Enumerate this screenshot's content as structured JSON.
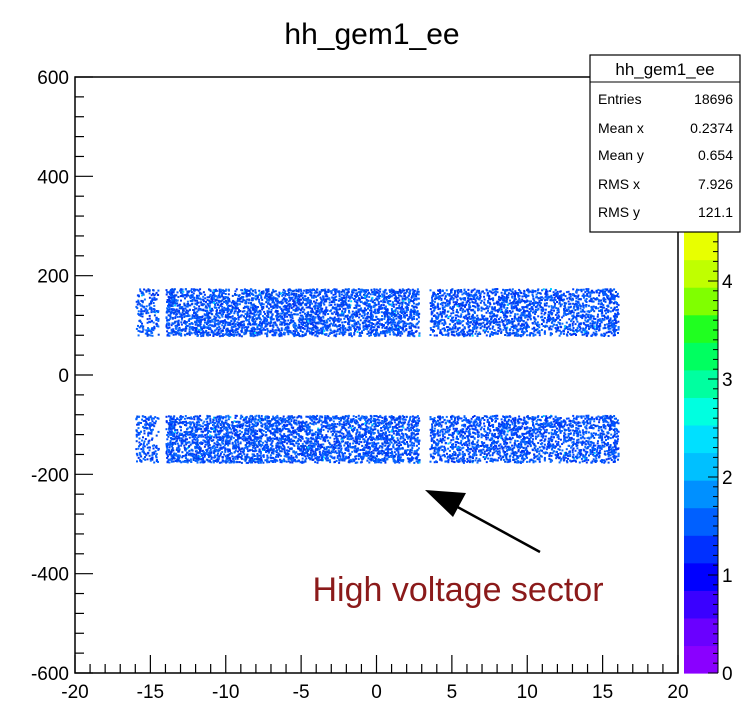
{
  "chart_data": {
    "type": "heatmap",
    "title": "hh_gem1_ee",
    "xlabel": "",
    "ylabel": "",
    "xlim": [
      -20,
      20
    ],
    "ylim": [
      -600,
      600
    ],
    "x_ticks": [
      -20,
      -15,
      -10,
      -5,
      0,
      5,
      10,
      15,
      20
    ],
    "y_ticks": [
      -600,
      -400,
      -200,
      0,
      200,
      400,
      600
    ],
    "z_ticks": [
      0,
      1,
      2,
      3,
      4
    ],
    "z_range": [
      0,
      4.5
    ],
    "palette": [
      "#8a00ff",
      "#6a00ff",
      "#3a00ff",
      "#0000ff",
      "#0030ff",
      "#0060ff",
      "#0090ff",
      "#00c0ff",
      "#00e0ff",
      "#00ffe0",
      "#00ffa0",
      "#00ff60",
      "#20ff20",
      "#80ff00",
      "#c0ff00",
      "#e8ff00"
    ],
    "regions": [
      {
        "x": [
          -16,
          -14.5
        ],
        "y": [
          80,
          175
        ],
        "density": 0.35
      },
      {
        "x": [
          -14,
          2.8
        ],
        "y": [
          80,
          175
        ],
        "density": 0.6
      },
      {
        "x": [
          3.5,
          16
        ],
        "y": [
          80,
          175
        ],
        "density": 0.5
      },
      {
        "x": [
          -16,
          -14.5
        ],
        "y": [
          -175,
          -80
        ],
        "density": 0.35
      },
      {
        "x": [
          -14,
          2.8
        ],
        "y": [
          -175,
          -80
        ],
        "density": 0.6
      },
      {
        "x": [
          3.5,
          16
        ],
        "y": [
          -175,
          -80
        ],
        "density": 0.5
      }
    ]
  },
  "stats": {
    "title": "hh_gem1_ee",
    "rows": [
      {
        "label": "Entries",
        "value": "18696"
      },
      {
        "label": "Mean x",
        "value": "0.2374"
      },
      {
        "label": "Mean y",
        "value": "0.654"
      },
      {
        "label": "RMS x",
        "value": "7.926"
      },
      {
        "label": "RMS y",
        "value": "121.1"
      }
    ]
  },
  "annotation": {
    "text": "High voltage sector",
    "color": "#8b1a1a"
  }
}
